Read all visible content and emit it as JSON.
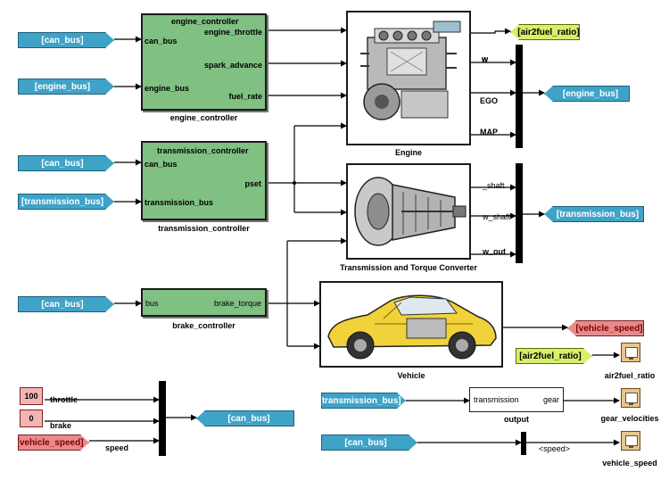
{
  "tags": {
    "can_bus": "[can_bus]",
    "engine_bus": "[engine_bus]",
    "transmission_bus": "[transmission_bus]",
    "air2fuel_ratio": "[air2fuel_ratio]",
    "vehicle_speed": "[vehicle_speed]"
  },
  "engine_controller": {
    "title": "engine_controller",
    "caption": "engine_controller",
    "in_can_bus": "can_bus",
    "in_engine_bus": "engine_bus",
    "out_throttle": "engine_throttle",
    "out_spark": "spark_advance",
    "out_fuel": "fuel_rate"
  },
  "transmission_controller": {
    "title": "transmission_controller",
    "caption": "transmission_controller",
    "in_can_bus": "can_bus",
    "in_transmission_bus": "transmission_bus",
    "out_pset": "pset"
  },
  "brake_controller": {
    "caption": "brake_controller",
    "in_bus": "bus",
    "out_brake_torque": "brake_torque"
  },
  "engine": {
    "caption": "Engine",
    "out_w": "w",
    "out_ego": "EGO",
    "out_map": "MAP",
    "image": "engine-image"
  },
  "transmission": {
    "caption": "Transmission and Torque Converter",
    "out_shaft": "_shaft",
    "out_w_shaft": "w_shaft",
    "out_w_out": "w_out",
    "image": "transmission-image"
  },
  "vehicle": {
    "caption": "Vehicle",
    "image": "car-image"
  },
  "driver_inputs": {
    "throttle_value": "100",
    "throttle_label": "throttle",
    "brake_value": "0",
    "brake_label": "brake",
    "speed_label": "speed"
  },
  "output_block": {
    "caption": "output",
    "in_label": "transmission",
    "out_label": "gear"
  },
  "scopes": {
    "air2fuel_ratio": "air2fuel_ratio",
    "gear_velocities": "gear_velocities",
    "vehicle_speed": "vehicle_speed"
  },
  "speed_selector_label": "<speed>",
  "colors": {
    "bus_tag": "#3fa3c8",
    "subsystem": "#80c183",
    "air2fuel_tag": "#d7f06a",
    "vehicle_speed_tag": "#e98a8a",
    "constant": "#f2b4b4",
    "scope": "#e8c58c"
  }
}
